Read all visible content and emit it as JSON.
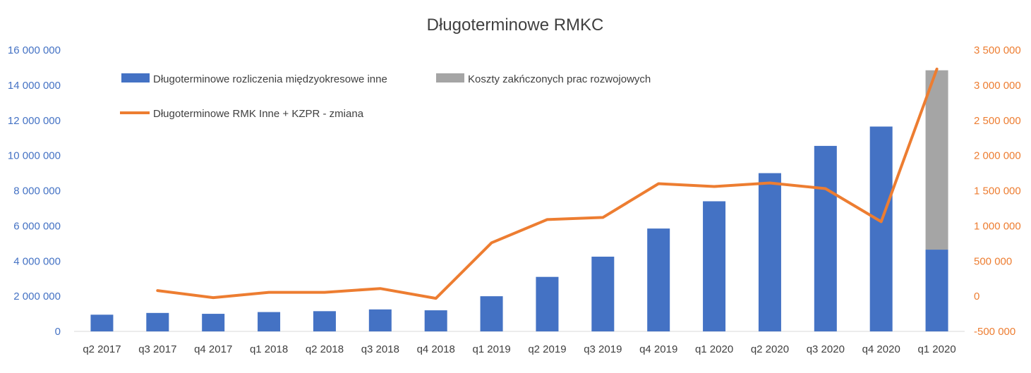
{
  "chart_data": {
    "type": "bar",
    "title": "Długoterminowe RMKC",
    "categories": [
      "q2 2017",
      "q3 2017",
      "q4 2017",
      "q1 2018",
      "q2 2018",
      "q3 2018",
      "q4 2018",
      "q1 2019",
      "q2 2019",
      "q3 2019",
      "q4 2019",
      "q1 2020",
      "q2 2020",
      "q3 2020",
      "q4 2020",
      "q1 2020"
    ],
    "series": [
      {
        "name": "Długoterminowe rozliczenia międzyokresowe inne",
        "kind": "bar",
        "axis": "left",
        "color": "#4472C4",
        "values": [
          950000,
          1050000,
          1000000,
          1100000,
          1150000,
          1250000,
          1200000,
          2000000,
          3100000,
          4250000,
          5850000,
          7400000,
          9000000,
          10550000,
          11650000,
          4650000
        ]
      },
      {
        "name": "Koszty zakńczonych prac rozwojowych",
        "kind": "bar",
        "axis": "left",
        "stacked": true,
        "color": "#A5A5A5",
        "values": [
          0,
          0,
          0,
          0,
          0,
          0,
          0,
          0,
          0,
          0,
          0,
          0,
          0,
          0,
          0,
          10200000
        ]
      },
      {
        "name": "Długoterminowe RMK Inne + KZPR - zmiana",
        "kind": "line",
        "axis": "right",
        "color": "#ED7D31",
        "values": [
          null,
          80000,
          -20000,
          55000,
          55000,
          110000,
          -30000,
          760000,
          1090000,
          1120000,
          1600000,
          1560000,
          1610000,
          1530000,
          1060000,
          3230000
        ]
      }
    ],
    "left_axis": {
      "min": 0,
      "max": 16000000,
      "step": 2000000,
      "tick_labels": [
        "0",
        "2 000 000",
        "4 000 000",
        "6 000 000",
        "8 000 000",
        "10 000 000",
        "12 000 000",
        "14 000 000",
        "16 000 000"
      ]
    },
    "right_axis": {
      "min": -500000,
      "max": 3500000,
      "step": 500000,
      "tick_labels": [
        "-500 000",
        "0",
        "500 000",
        "1 000 000",
        "1 500 000",
        "2 000 000",
        "2 500 000",
        "3 000 000",
        "3 500 000"
      ]
    },
    "grid": false,
    "legend_position": "top-left"
  }
}
